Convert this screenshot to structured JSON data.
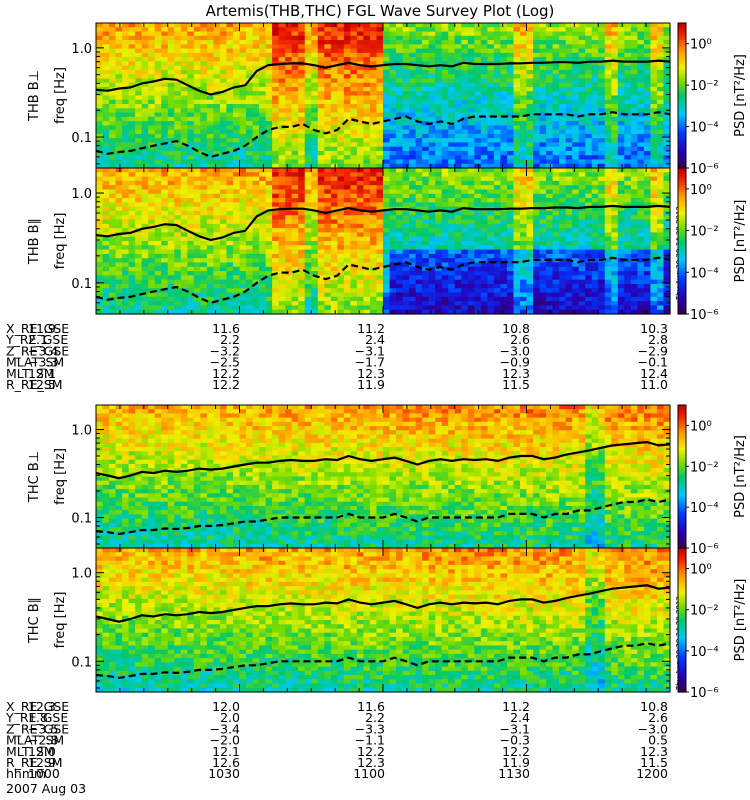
{
  "title": "Artemis(THB,THC) FGL Wave Survey Plot (Log)",
  "colorbar_label": "PSD [nT²/Hz]",
  "yaxis_label": "freq [Hz]",
  "stamp": "Thu Aug 30 20:34:29 2012",
  "date_label": "2007 Aug 03",
  "chart_data": [
    {
      "type": "heatmap",
      "panel": "THB B⊥",
      "probe": "THB",
      "component": "B⊥",
      "ylabel": "freq [Hz]",
      "yscale": "log",
      "ylim": [
        0.045,
        1.9
      ],
      "yticks": [
        "1.0",
        "0.1"
      ],
      "zscale": "log",
      "zlim": [
        1e-06,
        10
      ],
      "zticks": [
        "10⁰",
        "10⁻²",
        "10⁻⁴",
        "10⁻⁶"
      ],
      "overlay_solid": [
        0.34,
        0.33,
        0.35,
        0.36,
        0.4,
        0.42,
        0.45,
        0.44,
        0.38,
        0.33,
        0.3,
        0.32,
        0.36,
        0.38,
        0.55,
        0.64,
        0.66,
        0.67,
        0.67,
        0.64,
        0.6,
        0.64,
        0.68,
        0.64,
        0.62,
        0.64,
        0.66,
        0.66,
        0.64,
        0.62,
        0.64,
        0.62,
        0.68,
        0.66,
        0.66,
        0.66,
        0.67,
        0.67,
        0.68,
        0.68,
        0.69,
        0.69,
        0.68,
        0.7,
        0.7,
        0.72,
        0.7,
        0.7,
        0.7,
        0.72,
        0.7
      ],
      "overlay_dashed": [
        0.07,
        0.065,
        0.068,
        0.07,
        0.075,
        0.08,
        0.085,
        0.09,
        0.08,
        0.068,
        0.06,
        0.065,
        0.07,
        0.08,
        0.1,
        0.12,
        0.13,
        0.13,
        0.14,
        0.12,
        0.11,
        0.12,
        0.16,
        0.15,
        0.14,
        0.15,
        0.16,
        0.17,
        0.15,
        0.14,
        0.15,
        0.14,
        0.16,
        0.17,
        0.17,
        0.17,
        0.17,
        0.17,
        0.18,
        0.18,
        0.18,
        0.18,
        0.17,
        0.18,
        0.18,
        0.19,
        0.18,
        0.18,
        0.18,
        0.19,
        0.18
      ]
    },
    {
      "type": "heatmap",
      "panel": "THB B∥",
      "probe": "THB",
      "component": "B∥",
      "ylabel": "freq [Hz]",
      "yscale": "log",
      "ylim": [
        0.045,
        1.9
      ],
      "yticks": [
        "1.0",
        "0.1"
      ],
      "zscale": "log",
      "zlim": [
        1e-06,
        10
      ],
      "zticks": [
        "10⁰",
        "10⁻²",
        "10⁻⁴",
        "10⁻⁶"
      ],
      "overlay_solid": [
        0.34,
        0.33,
        0.35,
        0.36,
        0.4,
        0.42,
        0.45,
        0.44,
        0.38,
        0.33,
        0.3,
        0.32,
        0.36,
        0.38,
        0.55,
        0.64,
        0.66,
        0.67,
        0.67,
        0.64,
        0.6,
        0.64,
        0.68,
        0.64,
        0.62,
        0.64,
        0.66,
        0.66,
        0.64,
        0.62,
        0.64,
        0.62,
        0.68,
        0.66,
        0.66,
        0.66,
        0.67,
        0.67,
        0.68,
        0.68,
        0.69,
        0.69,
        0.68,
        0.7,
        0.7,
        0.72,
        0.7,
        0.7,
        0.7,
        0.72,
        0.7
      ],
      "overlay_dashed": [
        0.07,
        0.065,
        0.068,
        0.07,
        0.075,
        0.08,
        0.085,
        0.09,
        0.08,
        0.068,
        0.06,
        0.065,
        0.07,
        0.08,
        0.1,
        0.12,
        0.13,
        0.13,
        0.14,
        0.12,
        0.11,
        0.12,
        0.16,
        0.15,
        0.14,
        0.15,
        0.16,
        0.17,
        0.15,
        0.14,
        0.15,
        0.14,
        0.16,
        0.17,
        0.17,
        0.17,
        0.17,
        0.17,
        0.18,
        0.18,
        0.18,
        0.18,
        0.17,
        0.18,
        0.18,
        0.19,
        0.18,
        0.18,
        0.18,
        0.19,
        0.18
      ]
    },
    {
      "type": "heatmap",
      "panel": "THC B⊥",
      "probe": "THC",
      "component": "B⊥",
      "ylabel": "freq [Hz]",
      "yscale": "log",
      "ylim": [
        0.045,
        1.9
      ],
      "yticks": [
        "1.0",
        "0.1"
      ],
      "zscale": "log",
      "zlim": [
        1e-06,
        10
      ],
      "zticks": [
        "10⁰",
        "10⁻²",
        "10⁻⁴",
        "10⁻⁶"
      ],
      "overlay_solid": [
        0.32,
        0.3,
        0.28,
        0.3,
        0.33,
        0.32,
        0.34,
        0.33,
        0.34,
        0.36,
        0.35,
        0.36,
        0.38,
        0.4,
        0.42,
        0.42,
        0.44,
        0.45,
        0.44,
        0.44,
        0.46,
        0.45,
        0.5,
        0.46,
        0.44,
        0.46,
        0.48,
        0.44,
        0.4,
        0.44,
        0.46,
        0.44,
        0.46,
        0.45,
        0.46,
        0.44,
        0.48,
        0.5,
        0.5,
        0.46,
        0.48,
        0.52,
        0.55,
        0.58,
        0.62,
        0.66,
        0.68,
        0.7,
        0.72,
        0.66,
        0.68
      ],
      "overlay_dashed": [
        0.07,
        0.068,
        0.065,
        0.068,
        0.072,
        0.072,
        0.075,
        0.074,
        0.076,
        0.08,
        0.08,
        0.082,
        0.086,
        0.09,
        0.09,
        0.095,
        0.1,
        0.1,
        0.1,
        0.1,
        0.1,
        0.1,
        0.11,
        0.1,
        0.1,
        0.1,
        0.11,
        0.1,
        0.09,
        0.1,
        0.1,
        0.1,
        0.1,
        0.1,
        0.1,
        0.1,
        0.11,
        0.11,
        0.11,
        0.1,
        0.11,
        0.11,
        0.12,
        0.12,
        0.13,
        0.14,
        0.15,
        0.15,
        0.16,
        0.15,
        0.16
      ]
    },
    {
      "type": "heatmap",
      "panel": "THC B∥",
      "probe": "THC",
      "component": "B∥",
      "ylabel": "freq [Hz]",
      "yscale": "log",
      "ylim": [
        0.045,
        1.9
      ],
      "yticks": [
        "1.0",
        "0.1"
      ],
      "zscale": "log",
      "zlim": [
        1e-06,
        10
      ],
      "zticks": [
        "10⁰",
        "10⁻²",
        "10⁻⁴",
        "10⁻⁶"
      ],
      "overlay_solid": [
        0.32,
        0.3,
        0.28,
        0.3,
        0.33,
        0.32,
        0.34,
        0.33,
        0.34,
        0.36,
        0.35,
        0.36,
        0.38,
        0.4,
        0.42,
        0.42,
        0.44,
        0.45,
        0.44,
        0.44,
        0.46,
        0.45,
        0.5,
        0.46,
        0.44,
        0.46,
        0.48,
        0.44,
        0.4,
        0.44,
        0.46,
        0.44,
        0.46,
        0.45,
        0.46,
        0.44,
        0.48,
        0.5,
        0.5,
        0.46,
        0.48,
        0.52,
        0.55,
        0.58,
        0.62,
        0.66,
        0.68,
        0.7,
        0.72,
        0.66,
        0.68
      ],
      "overlay_dashed": [
        0.07,
        0.068,
        0.065,
        0.068,
        0.072,
        0.072,
        0.075,
        0.074,
        0.076,
        0.08,
        0.08,
        0.082,
        0.086,
        0.09,
        0.09,
        0.095,
        0.1,
        0.1,
        0.1,
        0.1,
        0.1,
        0.1,
        0.11,
        0.1,
        0.1,
        0.1,
        0.11,
        0.1,
        0.09,
        0.1,
        0.1,
        0.1,
        0.1,
        0.1,
        0.1,
        0.1,
        0.11,
        0.11,
        0.11,
        0.1,
        0.11,
        0.11,
        0.12,
        0.12,
        0.13,
        0.14,
        0.15,
        0.15,
        0.16,
        0.15,
        0.16
      ]
    }
  ],
  "ephem_thb": {
    "labels": [
      "X_RE_GSE",
      "Y_RE_GSE",
      "Z_RE_GSE",
      "MLAT_SM",
      "MLT_SM",
      "R_RE_SM"
    ],
    "columns": [
      [
        "11.9",
        "2.1",
        "−3.4",
        "−3.3",
        "12.1",
        "12.5"
      ],
      [
        "11.6",
        "2.2",
        "−3.2",
        "−2.5",
        "12.2",
        "12.2"
      ],
      [
        "11.2",
        "2.4",
        "−3.1",
        "−1.7",
        "12.3",
        "11.9"
      ],
      [
        "10.8",
        "2.6",
        "−3.0",
        "−0.9",
        "12.3",
        "11.5"
      ],
      [
        "10.3",
        "2.8",
        "−2.9",
        "−0.1",
        "12.4",
        "11.0"
      ]
    ]
  },
  "ephem_thc": {
    "labels": [
      "X_RE_GSE",
      "Y_RE_GSE",
      "Z_RE_GSE",
      "MLAT_SM",
      "MLT_SM",
      "R_RE_SM",
      "hhmm"
    ],
    "columns": [
      [
        "12.3",
        "1.8",
        "−3.5",
        "−2.8",
        "12.0",
        "12.9",
        "1000"
      ],
      [
        "12.0",
        "2.0",
        "−3.4",
        "−2.0",
        "12.1",
        "12.6",
        "1030"
      ],
      [
        "11.6",
        "2.2",
        "−3.3",
        "−1.1",
        "12.2",
        "12.3",
        "1100"
      ],
      [
        "11.2",
        "2.4",
        "−3.1",
        "−0.3",
        "12.2",
        "11.9",
        "1130"
      ],
      [
        "10.8",
        "2.6",
        "−3.0",
        "0.5",
        "12.3",
        "11.5",
        "1200"
      ]
    ]
  }
}
